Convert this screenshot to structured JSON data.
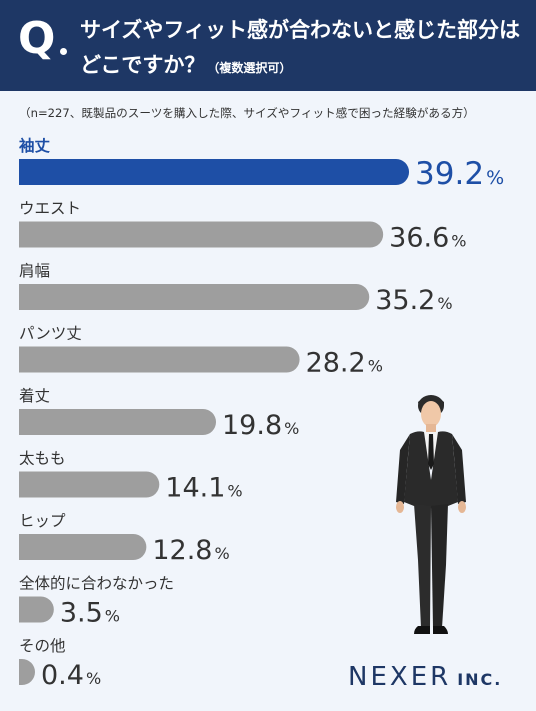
{
  "header": {
    "q_label": "Q",
    "question_line1": "サイズやフィット感が合わないと感じた部分は",
    "question_line2": "どこですか？",
    "question_note": "（複数選択可）"
  },
  "sample_note": "（n=227、既製品のスーツを購入した際、サイズやフィット感で困った経験がある方）",
  "brand": {
    "name": "NEXER",
    "suffix": "INC."
  },
  "colors": {
    "header": "#1e3765",
    "highlight_bar": "#1e4fa6",
    "bar": "#9e9e9e",
    "highlight_text": "#1e4fa6",
    "text": "#333333"
  },
  "chart_data": {
    "type": "bar",
    "orientation": "horizontal",
    "unit": "%",
    "categories": [
      "袖丈",
      "ウエスト",
      "肩幅",
      "パンツ丈",
      "着丈",
      "太もも",
      "ヒップ",
      "全体的に合わなかった",
      "その他"
    ],
    "values": [
      39.2,
      36.6,
      35.2,
      28.2,
      19.8,
      14.1,
      12.8,
      3.5,
      0.4
    ],
    "value_labels": [
      "39.2",
      "36.6",
      "35.2",
      "28.2",
      "19.8",
      "14.1",
      "12.8",
      "3.5",
      "0.4"
    ],
    "highlight_index": 0
  }
}
